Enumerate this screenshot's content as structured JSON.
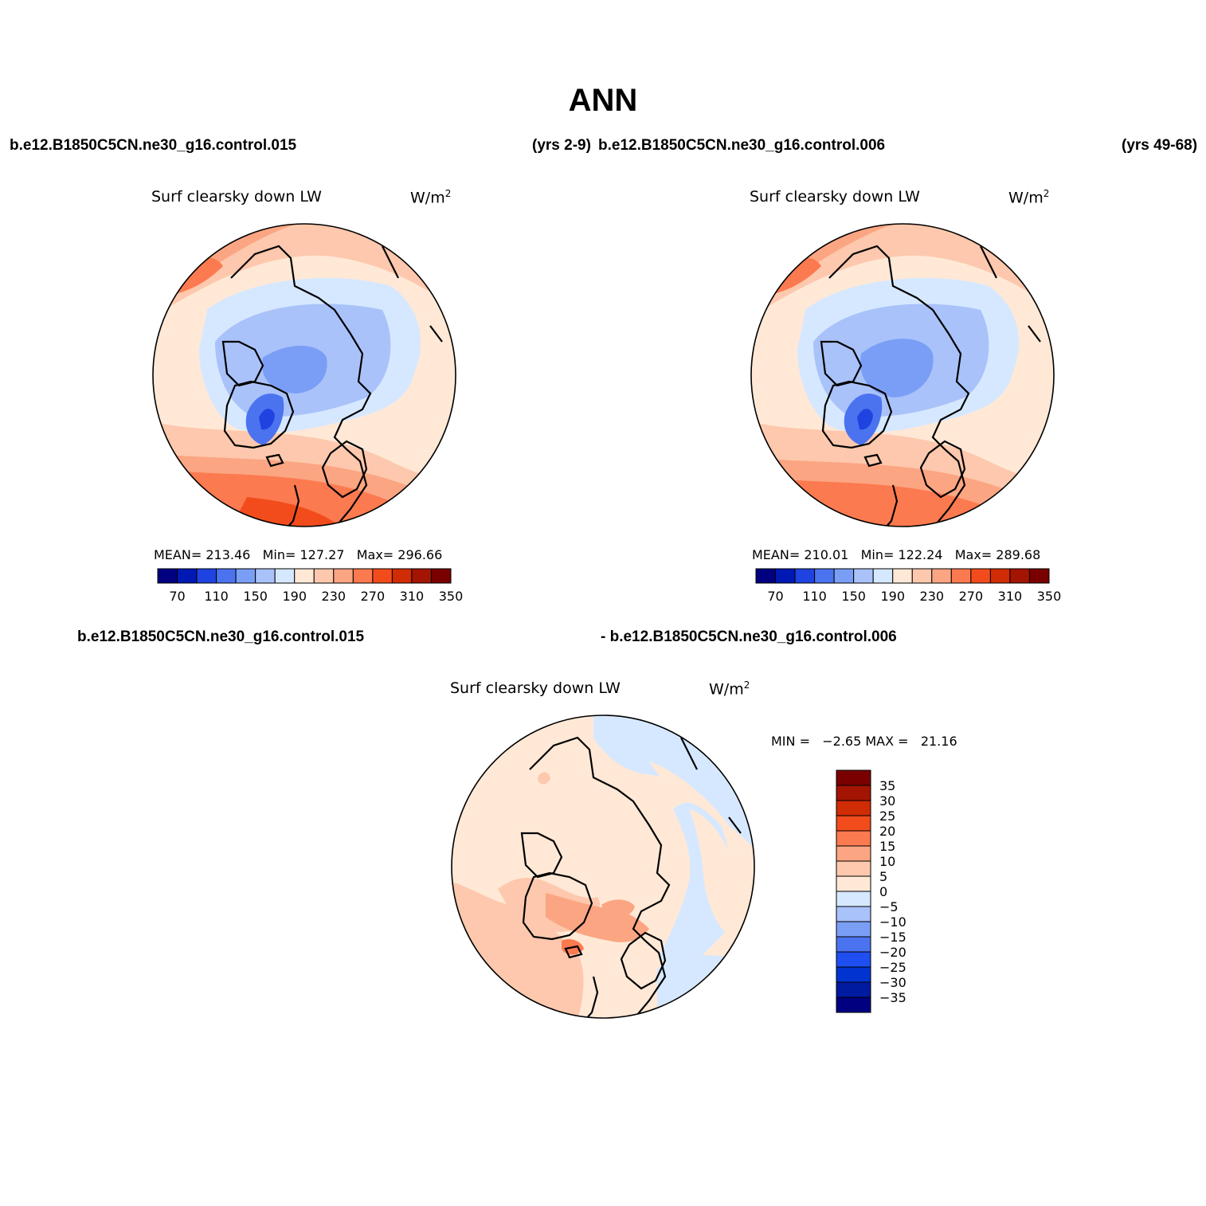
{
  "title": "ANN",
  "panels": [
    {
      "case_name": "b.e12.B1850C5CN.ne30_g16.control.015",
      "years": "(yrs 2-9)",
      "variable": "Surf clearsky down LW",
      "units": "W/m",
      "units_sup": "2",
      "stats": {
        "mean_label": "MEAN=",
        "mean": "213.46",
        "min_label": "Min=",
        "min": "127.27",
        "max_label": "Max=",
        "max": "296.66"
      }
    },
    {
      "case_name": "b.e12.B1850C5CN.ne30_g16.control.006",
      "years": "(yrs 49-68)",
      "variable": "Surf clearsky down LW",
      "units": "W/m",
      "units_sup": "2",
      "stats": {
        "mean_label": "MEAN=",
        "mean": "210.01",
        "min_label": "Min=",
        "min": "122.24",
        "max_label": "Max=",
        "max": "289.68"
      }
    }
  ],
  "diff": {
    "case_a": "b.e12.B1850C5CN.ne30_g16.control.015",
    "case_b": "- b.e12.B1850C5CN.ne30_g16.control.006",
    "variable": "Surf clearsky down LW",
    "units": "W/m",
    "units_sup": "2",
    "minmax": "MIN =   −2.65 MAX =   21.16"
  },
  "colorbar_abs": {
    "colors": [
      "#000080",
      "#0019b4",
      "#1f43e0",
      "#4b73f0",
      "#7a9ef5",
      "#a9c2fa",
      "#d6e8ff",
      "#ffe8d6",
      "#fdc8ad",
      "#fba582",
      "#fc7a4f",
      "#f24c1c",
      "#d02c05",
      "#a41402",
      "#7a0000"
    ],
    "labels": [
      "70",
      "110",
      "150",
      "190",
      "230",
      "270",
      "310",
      "350"
    ]
  },
  "colorbar_diff": {
    "colors": [
      "#000080",
      "#001aa0",
      "#0033d0",
      "#1f4ff0",
      "#4b73f0",
      "#7a9ef5",
      "#a9c2fa",
      "#d6e8ff",
      "#ffe8d6",
      "#fdc8ad",
      "#fba582",
      "#fc7a4f",
      "#f24c1c",
      "#d02c05",
      "#a41402",
      "#7a0000"
    ],
    "labels": [
      "−35",
      "−30",
      "−25",
      "−20",
      "−15",
      "−10",
      "−5",
      "0",
      "5",
      "10",
      "15",
      "20",
      "25",
      "30",
      "35"
    ]
  }
}
